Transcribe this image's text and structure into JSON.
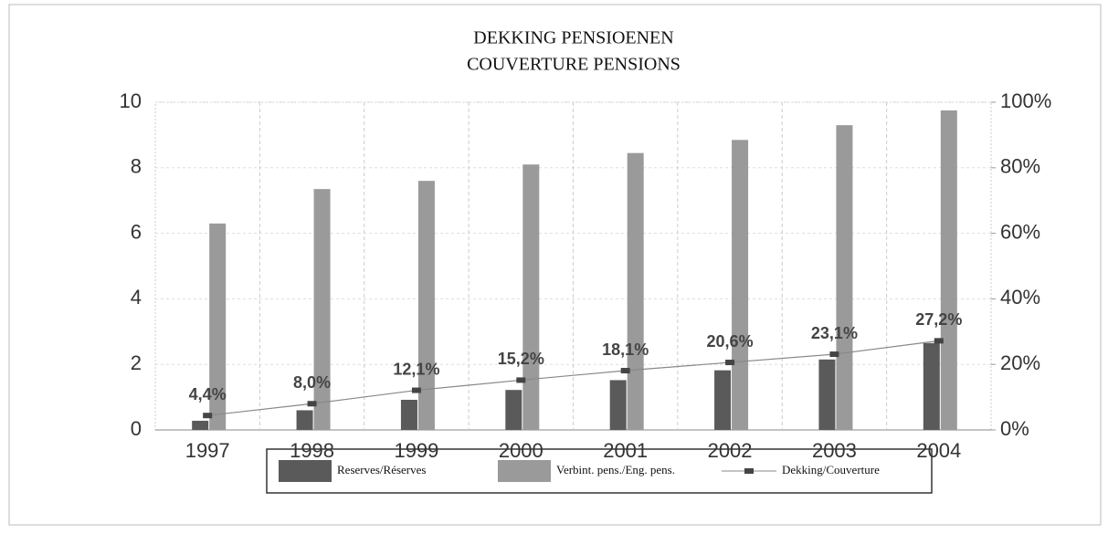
{
  "chart_data": {
    "type": "bar_line",
    "title": [
      "DEKKING PENSIOENEN",
      "COUVERTURE PENSIONS"
    ],
    "categories": [
      "1997",
      "1998",
      "1999",
      "2000",
      "2001",
      "2002",
      "2003",
      "2004"
    ],
    "series": [
      {
        "name": "Reserves/Réserves",
        "color": "#5a5a5a",
        "values": [
          0.28,
          0.6,
          0.92,
          1.22,
          1.52,
          1.82,
          2.15,
          2.65
        ]
      },
      {
        "name": "Verbint. pens./Eng. pens.",
        "color": "#9a9a9a",
        "values": [
          6.3,
          7.35,
          7.6,
          8.1,
          8.45,
          8.85,
          9.3,
          9.75
        ]
      },
      {
        "name": "Dekking/Couverture",
        "color": "#888888",
        "axis": "y2",
        "values": [
          4.4,
          8.0,
          12.1,
          15.2,
          18.1,
          20.6,
          23.1,
          27.2
        ],
        "value_labels": [
          "4,4%",
          "8,0%",
          "12,1%",
          "15,2%",
          "18,1%",
          "20,6%",
          "23,1%",
          "27,2%"
        ]
      }
    ],
    "ylim": [
      0,
      10
    ],
    "yticks": [
      0,
      2,
      4,
      6,
      8,
      10
    ],
    "y2lim": [
      0,
      100
    ],
    "y2ticks": [
      {
        "value": 0,
        "label": "0%"
      },
      {
        "value": 20,
        "label": "20%"
      },
      {
        "value": 40,
        "label": "40%"
      },
      {
        "value": 60,
        "label": "60%"
      },
      {
        "value": 80,
        "label": "80%"
      },
      {
        "value": 100,
        "label": "100%"
      }
    ],
    "grid": true
  }
}
